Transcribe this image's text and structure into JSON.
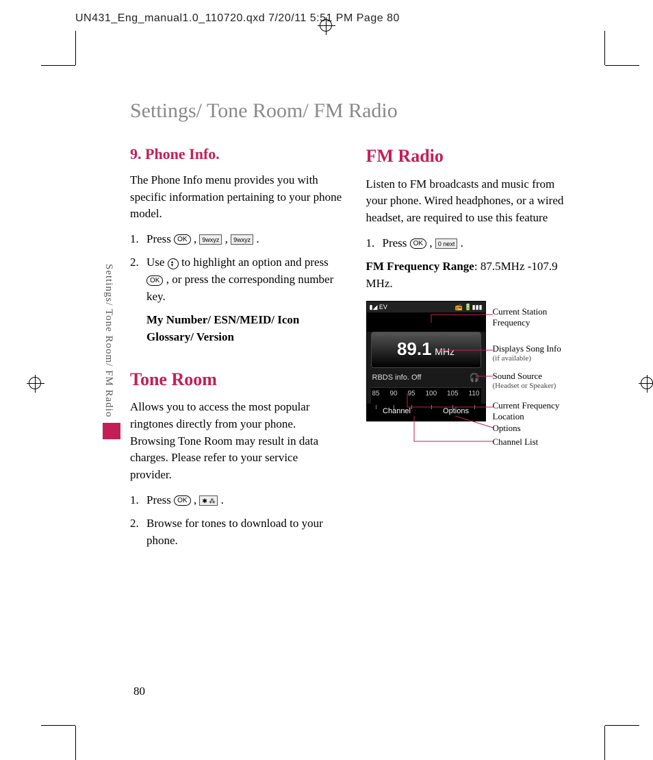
{
  "print_header": "UN431_Eng_manual1.0_110720.qxd  7/20/11  5:51 PM  Page 80",
  "chapter_title": "Settings/ Tone Room/ FM Radio",
  "side_tab_text": "Settings/ Tone Room/ FM Radio",
  "page_number": "80",
  "accent_color": "#c41e58",
  "left_col": {
    "h1": "9. Phone Info.",
    "p1": "The Phone Info menu provides you with specific information pertaining to your phone model.",
    "s1_num": "1.",
    "s1_a": "Press ",
    "s1_ok": "OK",
    "s1_k1": "9wxyz",
    "s1_k2": "9wxyz",
    "s2_num": "2.",
    "s2_a": "Use ",
    "s2_b": " to highlight an option and press ",
    "s2_ok": "OK",
    "s2_c": " , or press the corresponding number key.",
    "s2_sub": "My Number/ ESN/MEID/ Icon Glossary/ Version",
    "h2": "Tone Room",
    "p2": "Allows you to access the most popular ringtones directly from your phone. Browsing Tone Room may result in data charges. Please refer to your service provider.",
    "t1_num": "1.",
    "t1_a": "Press ",
    "t1_ok": "OK",
    "t1_k": "✱ ⁂",
    "t2_num": "2.",
    "t2_a": "Browse for tones to download to your phone."
  },
  "right_col": {
    "h1": "FM Radio",
    "p1": "Listen to FM broadcasts and music from your phone. Wired headphones, or a wired headset, are required to use this feature",
    "s1_num": "1.",
    "s1_a": "Press ",
    "s1_ok": "OK",
    "s1_k": "0 next",
    "range_label": "FM Frequency Range",
    "range_val": ": 87.5MHz -107.9 MHz."
  },
  "phone": {
    "status_left": "▮◢  EV",
    "status_right": "📻 🔋▮▮▮",
    "freq": "89.1",
    "unit": "MHz",
    "rbds": "RBDS info. Off",
    "hp_icon": "🎧",
    "scale": [
      "85",
      "90",
      "95",
      "100",
      "105",
      "110"
    ],
    "soft_left": "Channel",
    "soft_right": "Options"
  },
  "callouts": {
    "c1": "Current Station Frequency",
    "c2": "Displays Song Info",
    "c2s": "(if available)",
    "c3": "Sound Source",
    "c3s": "(Headset or Speaker)",
    "c4": "Current Frequency Location",
    "c5": "Options",
    "c6": "Channel List"
  }
}
